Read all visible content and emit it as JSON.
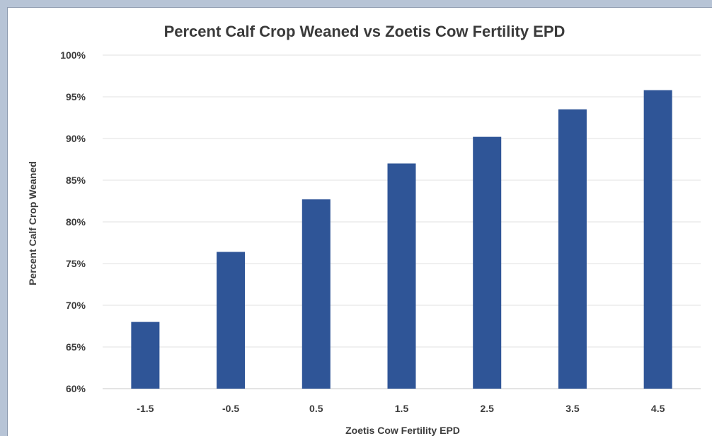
{
  "chart_data": {
    "type": "bar",
    "title": "Percent Calf Crop Weaned vs Zoetis Cow Fertility EPD",
    "xlabel": "Zoetis Cow Fertility EPD",
    "ylabel": "Percent Calf Crop Weaned",
    "categories": [
      "-1.5",
      "-0.5",
      "0.5",
      "1.5",
      "2.5",
      "3.5",
      "4.5"
    ],
    "values": [
      68,
      76.4,
      82.7,
      87,
      90.2,
      93.5,
      95.8
    ],
    "ylim": [
      60,
      100
    ],
    "yticks": [
      "60%",
      "65%",
      "70%",
      "75%",
      "80%",
      "85%",
      "90%",
      "95%",
      "100%"
    ],
    "bar_color": "#2f5597",
    "grid": true,
    "legend": "none"
  }
}
